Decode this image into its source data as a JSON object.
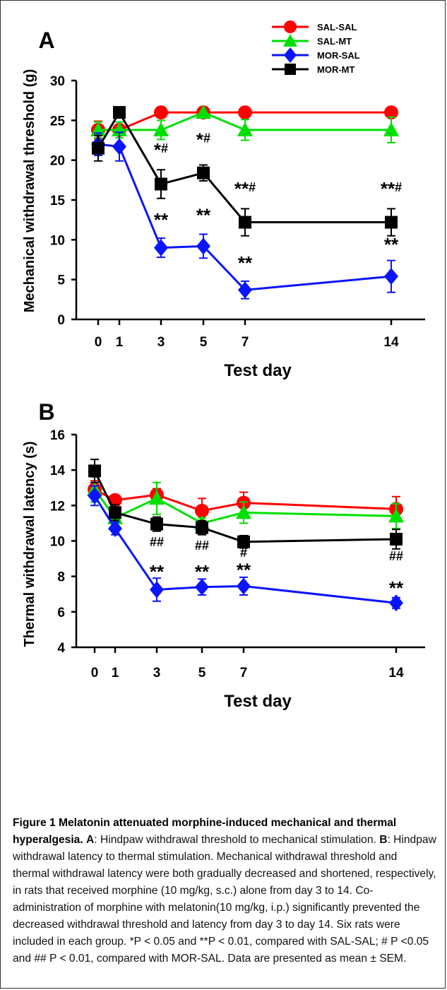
{
  "chart_data": [
    {
      "type": "line",
      "panel_label": "A",
      "title": "",
      "xlabel": "Test day",
      "ylabel": "Mechanical withdrawal threshold (g)",
      "x": [
        0,
        1,
        3,
        5,
        7,
        14
      ],
      "x_ticks": [
        "0",
        "1",
        "3",
        "5",
        "7",
        "14"
      ],
      "y_ticks": [
        "0",
        "5",
        "10",
        "15",
        "20",
        "25",
        "30"
      ],
      "ylim": [
        0,
        30
      ],
      "grid": false,
      "legend_position": "top-right",
      "series": [
        {
          "name": "SAL-SAL",
          "color": "#ff0000",
          "marker": "circle",
          "values": [
            23.8,
            23.8,
            26,
            26,
            26,
            26
          ],
          "errors": [
            1.1,
            0.6,
            0,
            0,
            0,
            0
          ]
        },
        {
          "name": "SAL-MT",
          "color": "#00e000",
          "marker": "triangle",
          "values": [
            23.8,
            23.8,
            23.8,
            26,
            23.8,
            23.8
          ],
          "errors": [
            1.0,
            1.0,
            1.2,
            0,
            1.3,
            1.6
          ]
        },
        {
          "name": "MOR-SAL",
          "color": "#0a14ff",
          "marker": "diamond",
          "values": [
            22.0,
            21.7,
            9.0,
            9.2,
            3.7,
            5.4
          ],
          "errors": [
            1.4,
            1.8,
            1.2,
            1.5,
            1.1,
            2.0
          ]
        },
        {
          "name": "MOR-MT",
          "color": "#000000",
          "marker": "square",
          "values": [
            21.5,
            26,
            17.0,
            18.4,
            12.2,
            12.2
          ],
          "errors": [
            1.6,
            0,
            1.8,
            1.0,
            1.7,
            1.7
          ]
        }
      ],
      "annotations": [
        {
          "x": 3,
          "y": 20.5,
          "text": "*#"
        },
        {
          "x": 5,
          "y": 21.8,
          "text": "*#"
        },
        {
          "x": 7,
          "y": 15.6,
          "text": "**#"
        },
        {
          "x": 14,
          "y": 15.6,
          "text": "**#"
        },
        {
          "x": 3,
          "y": 11.7,
          "text": "**"
        },
        {
          "x": 5,
          "y": 12.3,
          "text": "**"
        },
        {
          "x": 7,
          "y": 6.3,
          "text": "**"
        },
        {
          "x": 14,
          "y": 8.6,
          "text": "**"
        }
      ]
    },
    {
      "type": "line",
      "panel_label": "B",
      "title": "",
      "xlabel": "Test day",
      "ylabel": "Thermal withdrawal latency (s)",
      "x": [
        0,
        1,
        3,
        5,
        7,
        14
      ],
      "x_ticks": [
        "0",
        "1",
        "3",
        "5",
        "7",
        "14"
      ],
      "y_ticks": [
        "4",
        "6",
        "8",
        "10",
        "12",
        "14",
        "16"
      ],
      "ylim": [
        4,
        16
      ],
      "grid": false,
      "legend_position": "none",
      "series": [
        {
          "name": "SAL-SAL",
          "color": "#ff0000",
          "marker": "circle",
          "values": [
            12.9,
            12.3,
            12.6,
            11.7,
            12.15,
            11.8
          ],
          "errors": [
            0.5,
            0.25,
            0.35,
            0.7,
            0.6,
            0.7
          ]
        },
        {
          "name": "SAL-MT",
          "color": "#00e000",
          "marker": "triangle",
          "values": [
            12.9,
            11.3,
            12.4,
            11.0,
            11.6,
            11.4
          ],
          "errors": [
            0.7,
            0.3,
            0.9,
            0.3,
            0.6,
            0.7
          ]
        },
        {
          "name": "MOR-SAL",
          "color": "#0a14ff",
          "marker": "diamond",
          "values": [
            12.55,
            10.7,
            7.25,
            7.4,
            7.45,
            6.5
          ],
          "errors": [
            0.55,
            0.35,
            0.65,
            0.45,
            0.5,
            0.3
          ]
        },
        {
          "name": "MOR-MT",
          "color": "#000000",
          "marker": "square",
          "values": [
            13.95,
            11.6,
            10.95,
            10.75,
            9.95,
            10.1
          ],
          "errors": [
            0.65,
            0.45,
            0.4,
            0.4,
            0.35,
            0.55
          ]
        }
      ],
      "annotations": [
        {
          "x": 3,
          "y": 9.7,
          "text": "##"
        },
        {
          "x": 5,
          "y": 9.5,
          "text": "##"
        },
        {
          "x": 7,
          "y": 9.1,
          "text": "#"
        },
        {
          "x": 14,
          "y": 8.9,
          "text": "##"
        },
        {
          "x": 3,
          "y": 7.9,
          "text": "**"
        },
        {
          "x": 5,
          "y": 7.9,
          "text": "**"
        },
        {
          "x": 7,
          "y": 8.0,
          "text": "**"
        },
        {
          "x": 14,
          "y": 7.0,
          "text": "**"
        }
      ]
    }
  ],
  "caption": {
    "title": "Figure 1 Melatonin attenuated morphine-induced mechanical and thermal hyperalgesia.",
    "a_label": "A",
    "a_text": ": Hindpaw withdrawal threshold to mechanical stimulation.",
    "b_label": "B",
    "b_text": ": Hindpaw withdrawal latency to thermal stimulation. Mechanical withdrawal threshold and thermal withdrawal latency were both gradually decreased and shortened, respectively, in rats that received morphine (10 mg/kg, s.c.) alone from day 3 to 14. Co-administration of morphine with melatonin(10 mg/kg, i.p.) significantly prevented the decreased withdrawal threshold and latency from day 3 to day 14. Six rats were included in each group. *P < 0.05 and **P < 0.01, compared with SAL-SAL; # P <0.05 and ## P < 0.01, compared with MOR-SAL. Data are presented as mean ± SEM."
  }
}
